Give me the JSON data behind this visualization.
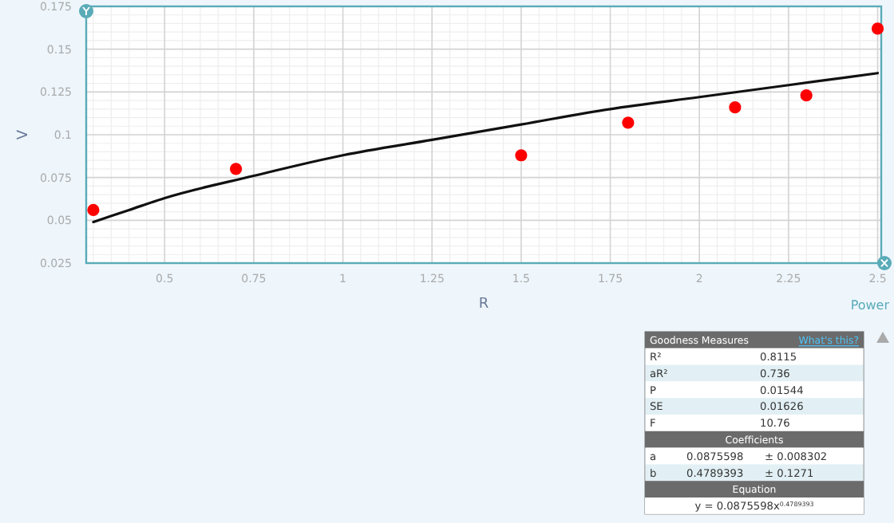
{
  "chart_data": {
    "type": "scatter",
    "xlabel": "R",
    "ylabel": "V",
    "xlim": [
      0.28,
      2.51
    ],
    "ylim": [
      0.025,
      0.175
    ],
    "xticks": [
      0.5,
      0.75,
      1,
      1.25,
      1.5,
      1.75,
      2,
      2.25,
      2.5
    ],
    "yticks": [
      0.025,
      0.05,
      0.075,
      0.1,
      0.125,
      0.15,
      0.175
    ],
    "grid": true,
    "marker": "circle",
    "series": [
      {
        "color": "#ff0000",
        "x": [
          0.3,
          0.7,
          1.5,
          1.8,
          2.1,
          2.3,
          2.5
        ],
        "values": [
          0.056,
          0.08,
          0.088,
          0.107,
          0.116,
          0.123,
          0.162
        ]
      },
      {
        "type": "line",
        "color": "#111111",
        "marker": "none",
        "line_style": "solid",
        "x": [
          0.3,
          0.4,
          0.5,
          0.75,
          1,
          1.25,
          1.5,
          1.75,
          2,
          2.25,
          2.5
        ],
        "values": [
          0.049,
          0.056,
          0.063,
          0.076,
          0.088,
          0.097,
          0.106,
          0.115,
          0.122,
          0.129,
          0.136
        ]
      }
    ],
    "annotations": [
      "Power",
      "Goodness Measures",
      "What's this?",
      "R²",
      "0.8115",
      "aR²",
      "0.736",
      "P",
      "0.01544",
      "SE",
      "0.01626",
      "F",
      "10.76",
      "Coefficients",
      "a",
      "0.0875598",
      "± 0.008302",
      "b",
      "0.4789393",
      "± 0.1271",
      "Equation",
      "y = 0.0875598x$^{0.4789393}$"
    ]
  }
}
